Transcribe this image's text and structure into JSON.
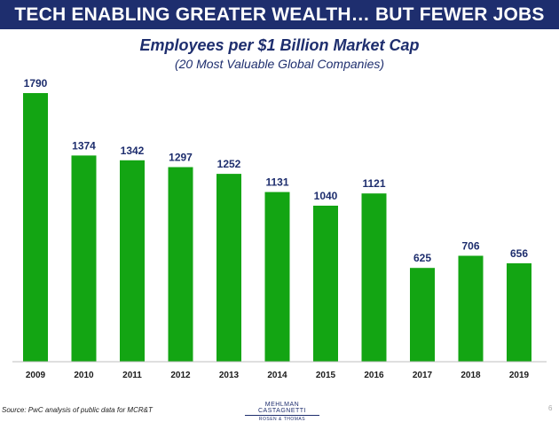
{
  "header": {
    "title": "TECH ENABLING GREATER WEALTH… BUT FEWER JOBS"
  },
  "colors": {
    "banner": "#1e2e6e",
    "bar": "#13a513",
    "label": "#1e2e6e"
  },
  "chart_data": {
    "type": "bar",
    "title": "Employees per $1 Billion Market Cap",
    "subtitle": "(20 Most Valuable Global Companies)",
    "xlabel": "",
    "ylabel": "",
    "categories": [
      "2009",
      "2010",
      "2011",
      "2012",
      "2013",
      "2014",
      "2015",
      "2016",
      "2017",
      "2018",
      "2019"
    ],
    "values": [
      1790,
      1374,
      1342,
      1297,
      1252,
      1131,
      1040,
      1121,
      625,
      706,
      656
    ],
    "ylim": [
      0,
      1790
    ],
    "grid": false,
    "legend": "none"
  },
  "footer": {
    "source": "Source: PwC analysis of public data for MCR&T",
    "logo_top": "MEHLMAN CASTAGNETTI",
    "logo_bottom": "ROSEN & THOMAS",
    "page_number": "6"
  }
}
